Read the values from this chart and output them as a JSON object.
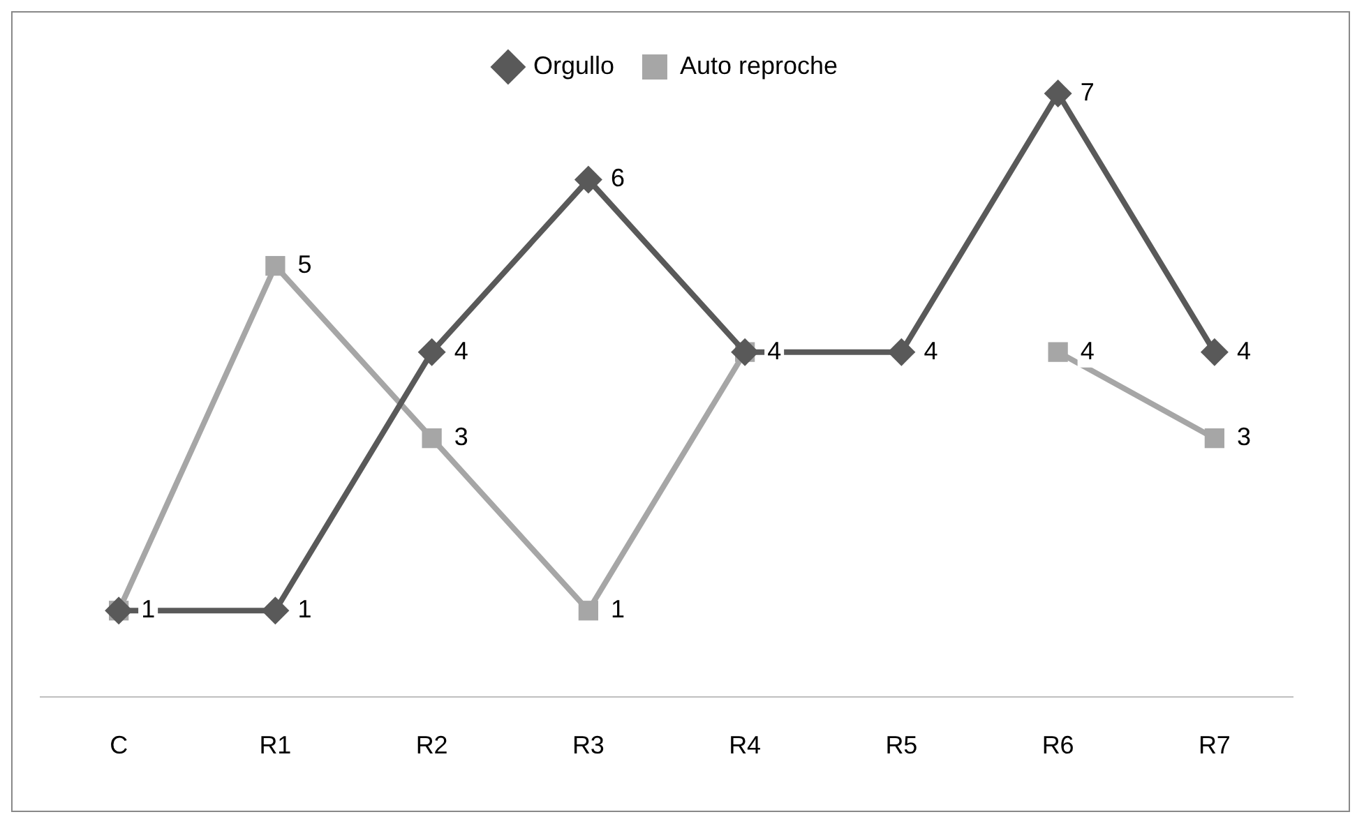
{
  "chart_data": {
    "type": "line",
    "categories": [
      "C",
      "R1",
      "R2",
      "R3",
      "R4",
      "R5",
      "R6",
      "R7"
    ],
    "series": [
      {
        "name": "Orgullo",
        "color": "#595959",
        "marker": "diamond",
        "values": [
          1,
          1,
          4,
          6,
          4,
          4,
          7,
          4
        ],
        "value_labels": [
          null,
          "1",
          "4",
          "6",
          null,
          "4",
          "7",
          "4"
        ]
      },
      {
        "name": "Auto reproche",
        "color": "#a6a6a6",
        "marker": "square",
        "values": [
          1,
          5,
          3,
          1,
          4,
          null,
          4,
          3
        ],
        "value_labels": [
          "1",
          "5",
          "3",
          "1",
          "4",
          null,
          "4",
          "3"
        ]
      }
    ],
    "grid": false,
    "legend": "top",
    "line_style": "solid"
  }
}
